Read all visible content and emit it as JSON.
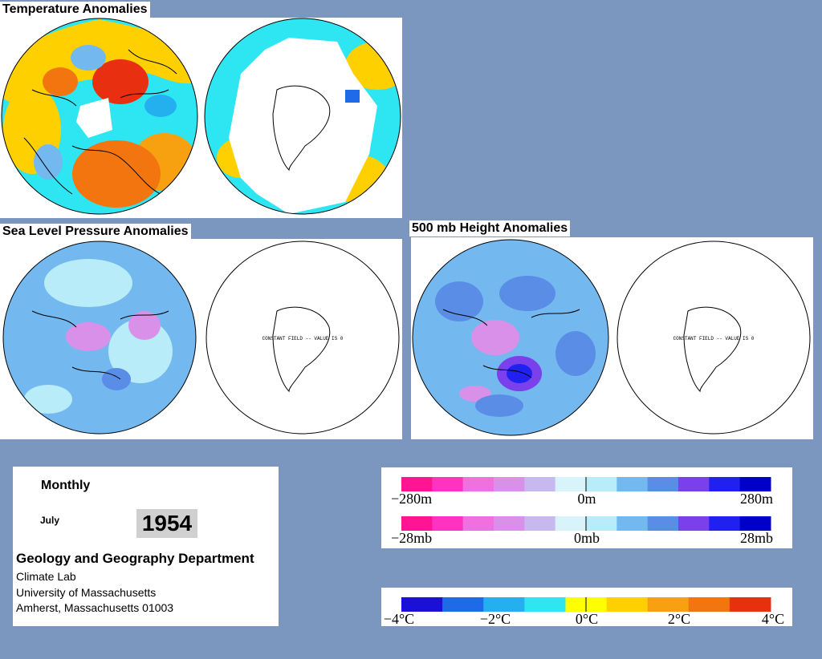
{
  "titles": {
    "temperature": "Temperature Anomalies",
    "slp": "Sea Level Pressure Anomalies",
    "height": "500 mb Height Anomalies"
  },
  "map_note": "CONSTANT FIELD -- VALUE IS 0",
  "info": {
    "period": "Monthly",
    "month": "July",
    "year": "1954",
    "department": "Geology and Geography Department",
    "lab": "Climate Lab",
    "university": "University of Massachusetts",
    "address": "Amherst, Massachusetts 01003"
  },
  "legend_height": {
    "labels": [
      "−280m",
      "0m",
      "280m"
    ]
  },
  "legend_pressure": {
    "labels": [
      "−28mb",
      "0mb",
      "28mb"
    ]
  },
  "legend_temperature": {
    "labels": [
      "−4°C",
      "−2°C",
      "0°C",
      "2°C",
      "4°C"
    ]
  },
  "colors": {
    "background": "#7b96bf",
    "temp_scale": [
      "#1a10d8",
      "#1f6ae8",
      "#24b0ef",
      "#2ee6f2",
      "#ffff00",
      "#ffd000",
      "#f7a010",
      "#f27510",
      "#e83010"
    ],
    "anomaly_scale": [
      "#ff1493",
      "#ff33c0",
      "#f070e0",
      "#d890e8",
      "#c8b8f0",
      "#d8f4fa",
      "#b8ecf8",
      "#74b8f0",
      "#5a8ee6",
      "#7a40ec",
      "#2020f0",
      "#0000c8"
    ]
  }
}
